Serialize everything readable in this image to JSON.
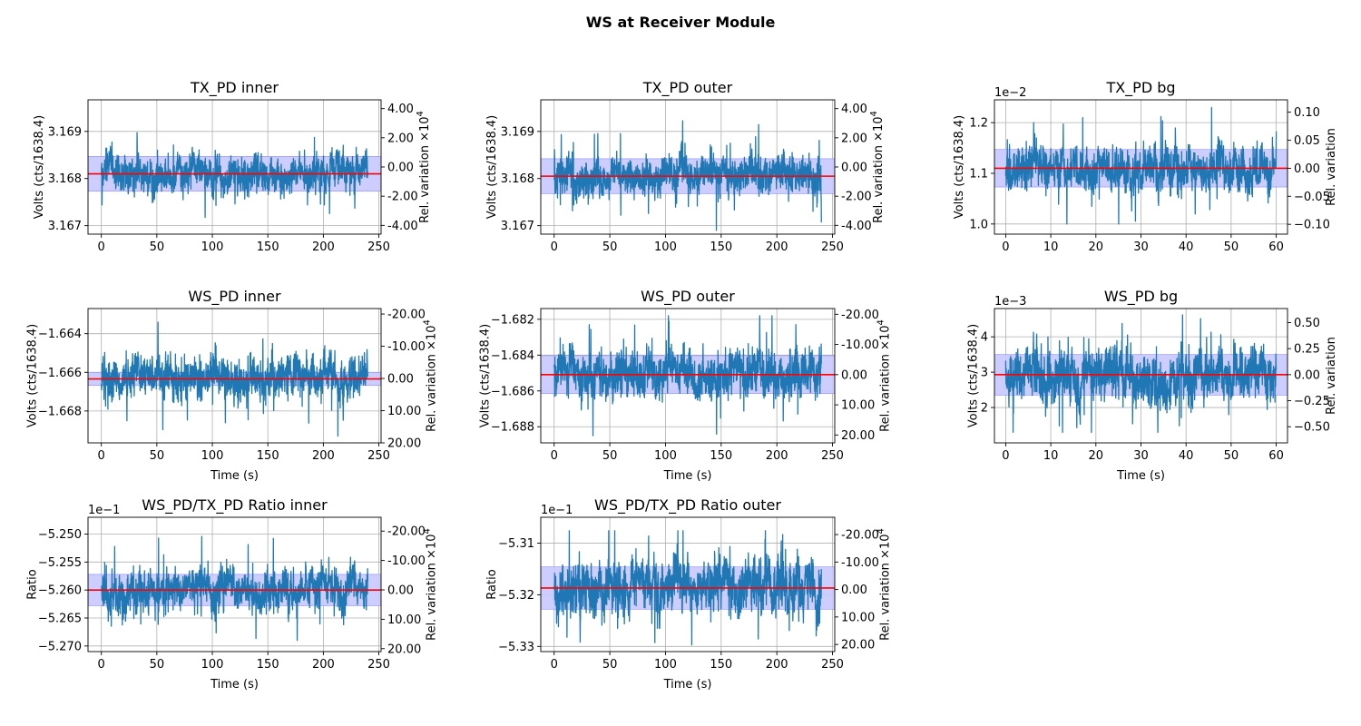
{
  "figure": {
    "title": "WS at Receiver Module"
  },
  "colors": {
    "trace": "#1f77b4",
    "mean_line": "#ff0000",
    "band": "#c8c8ff",
    "grid": "#b0b0b0"
  },
  "chart_data": [
    {
      "type": "line",
      "title": "TX_PD inner",
      "xlabel": "",
      "ylabel": "Volts (cts/1638.4)",
      "y2label": "Rel. variation ×10^4",
      "xlim": [
        -12,
        252
      ],
      "ylim": [
        3.16682,
        3.16967
      ],
      "x_ticks": [
        0,
        50,
        100,
        150,
        200,
        250
      ],
      "x_tick_labels": [
        "0",
        "50",
        "100",
        "150",
        "200",
        "250"
      ],
      "y_ticks": [
        3.167,
        3.168,
        3.169
      ],
      "y_tick_labels": [
        "3.167",
        "3.168",
        "3.169"
      ],
      "y2_ticks": [
        4,
        2,
        0,
        -2,
        -4
      ],
      "y2_tick_labels": [
        "4.00",
        "2.00",
        "0.00",
        "-2.00",
        "-4.00"
      ],
      "y2_at_ymin": -4.6,
      "y2_at_ymax": 4.6,
      "offset_text": "",
      "series": {
        "x_start": 0,
        "x_end": 240,
        "mean": 3.1681,
        "band": [
          3.16773,
          3.16847
        ],
        "min": 3.1669,
        "max": 3.16955,
        "noise": 0.0003
      },
      "grid": true
    },
    {
      "type": "line",
      "title": "TX_PD outer",
      "xlabel": "",
      "ylabel": "Volts (cts/1638.4)",
      "y2label": "Rel. variation ×10^4",
      "xlim": [
        -12,
        252
      ],
      "ylim": [
        3.16682,
        3.16967
      ],
      "x_ticks": [
        0,
        50,
        100,
        150,
        200,
        250
      ],
      "x_tick_labels": [
        "0",
        "50",
        "100",
        "150",
        "200",
        "250"
      ],
      "y_ticks": [
        3.167,
        3.168,
        3.169
      ],
      "y_tick_labels": [
        "3.167",
        "3.168",
        "3.169"
      ],
      "y2_ticks": [
        4,
        2,
        0,
        -2,
        -4
      ],
      "y2_tick_labels": [
        "4.00",
        "2.00",
        "0.00",
        "-2.00",
        "-4.00"
      ],
      "y2_at_ymin": -4.6,
      "y2_at_ymax": 4.6,
      "offset_text": "",
      "series": {
        "x_start": 0,
        "x_end": 240,
        "mean": 3.16805,
        "band": [
          3.16768,
          3.16842
        ],
        "min": 3.1669,
        "max": 3.1694,
        "noise": 0.0003
      },
      "grid": true
    },
    {
      "type": "line",
      "title": "TX_PD bg",
      "xlabel": "",
      "ylabel": "Volts (cts/1638.4)",
      "y2label": "Rel. variation",
      "xlim": [
        -2.5,
        62.5
      ],
      "ylim": [
        0.0098,
        0.01245
      ],
      "x_ticks": [
        0,
        10,
        20,
        30,
        40,
        50,
        60
      ],
      "x_tick_labels": [
        "0",
        "10",
        "20",
        "30",
        "40",
        "50",
        "60"
      ],
      "y_ticks": [
        0.01,
        0.011,
        0.012
      ],
      "y_tick_labels": [
        "1.0",
        "1.1",
        "1.2"
      ],
      "y2_ticks": [
        0.1,
        0.05,
        0.0,
        -0.05,
        -0.1
      ],
      "y2_tick_labels": [
        "0.10",
        "0.05",
        "0.00",
        "−0.05",
        "−0.10"
      ],
      "y2_at_ymin": -0.1175,
      "y2_at_ymax": 0.122,
      "offset_text": "1e−2",
      "series": {
        "x_start": 0,
        "x_end": 60,
        "mean": 0.0111,
        "band": [
          0.01073,
          0.01147
        ],
        "min": 0.01,
        "max": 0.01233,
        "noise": 0.00035
      },
      "grid": true
    },
    {
      "type": "line",
      "title": "WS_PD inner",
      "xlabel": "Time (s)",
      "ylabel": "Volts (cts/1638.4)",
      "y2label": "Rel. variation ×10^4",
      "xlim": [
        -12,
        252
      ],
      "ylim": [
        -1.66965,
        -1.6627
      ],
      "x_ticks": [
        0,
        50,
        100,
        150,
        200,
        250
      ],
      "x_tick_labels": [
        "0",
        "50",
        "100",
        "150",
        "200",
        "250"
      ],
      "y_ticks": [
        -1.664,
        -1.666,
        -1.668
      ],
      "y_tick_labels": [
        "−1.664",
        "−1.666",
        "−1.668"
      ],
      "y2_ticks": [
        -20,
        -10,
        0,
        10,
        20
      ],
      "y2_tick_labels": [
        "-20.00",
        "-10.00",
        "0.00",
        "10.00",
        "20.00"
      ],
      "y2_at_ymin": 20.0,
      "y2_at_ymax": -21.7,
      "offset_text": "",
      "series": {
        "x_start": 0,
        "x_end": 240,
        "mean": -1.66634,
        "band": [
          -1.66668,
          -1.666
        ],
        "min": -1.6693,
        "max": -1.6631,
        "noise": 0.00085
      },
      "grid": true
    },
    {
      "type": "line",
      "title": "WS_PD outer",
      "xlabel": "Time (s)",
      "ylabel": "Volts (cts/1638.4)",
      "y2label": "Rel. variation ×10^4",
      "xlim": [
        -12,
        252
      ],
      "ylim": [
        -1.6889,
        -1.6814
      ],
      "x_ticks": [
        0,
        50,
        100,
        150,
        200,
        250
      ],
      "x_tick_labels": [
        "0",
        "50",
        "100",
        "150",
        "200",
        "250"
      ],
      "y_ticks": [
        -1.682,
        -1.684,
        -1.686,
        -1.688
      ],
      "y_tick_labels": [
        "−1.682",
        "−1.684",
        "−1.686",
        "−1.688"
      ],
      "y2_ticks": [
        -20,
        -10,
        0,
        10,
        20
      ],
      "y2_tick_labels": [
        "-20.00",
        "-10.00",
        "0.00",
        "10.00",
        "20.00"
      ],
      "y2_at_ymin": 22.6,
      "y2_at_ymax": -21.9,
      "offset_text": "",
      "series": {
        "x_start": 0,
        "x_end": 240,
        "mean": -1.68509,
        "band": [
          -1.68615,
          -1.68403
        ],
        "min": -1.6885,
        "max": -1.6818,
        "noise": 0.001
      },
      "grid": true
    },
    {
      "type": "line",
      "title": "WS_PD bg",
      "xlabel": "Time (s)",
      "ylabel": "Volts (cts/1638.4)",
      "y2label": "Rel. variation",
      "xlim": [
        -2.5,
        62.5
      ],
      "ylim": [
        0.001,
        0.0048
      ],
      "x_ticks": [
        0,
        10,
        20,
        30,
        40,
        50,
        60
      ],
      "x_tick_labels": [
        "0",
        "10",
        "20",
        "30",
        "40",
        "50",
        "60"
      ],
      "y_ticks": [
        0.002,
        0.003,
        0.004
      ],
      "y_tick_labels": [
        "2",
        "3",
        "4"
      ],
      "y2_ticks": [
        0.5,
        0.25,
        0.0,
        -0.25,
        -0.5
      ],
      "y2_tick_labels": [
        "0.50",
        "0.25",
        "0.00",
        "−0.25",
        "−0.50"
      ],
      "y2_at_ymin": -0.655,
      "y2_at_ymax": 0.635,
      "offset_text": "1e−3",
      "series": {
        "x_start": 0,
        "x_end": 60,
        "mean": 0.00293,
        "band": [
          0.00235,
          0.0035
        ],
        "min": 0.0013,
        "max": 0.00462,
        "noise": 0.0006
      },
      "grid": true
    },
    {
      "type": "line",
      "title": "WS_PD/TX_PD Ratio inner",
      "xlabel": "Time (s)",
      "ylabel": "Ratio",
      "y2label": "Rel. variation ×10^4",
      "xlim": [
        -12,
        252
      ],
      "ylim": [
        -0.5271,
        -0.5247
      ],
      "x_ticks": [
        0,
        50,
        100,
        150,
        200,
        250
      ],
      "x_tick_labels": [
        "0",
        "50",
        "100",
        "150",
        "200",
        "250"
      ],
      "y_ticks": [
        -0.525,
        -0.5255,
        -0.526,
        -0.5265,
        -0.527
      ],
      "y_tick_labels": [
        "−5.250",
        "−5.255",
        "−5.260",
        "−5.265",
        "−5.270"
      ],
      "y2_ticks": [
        -20,
        -10,
        0,
        10,
        20
      ],
      "y2_tick_labels": [
        "-20.00",
        "-10.00",
        "0.00",
        "10.00",
        "20.00"
      ],
      "y2_at_ymin": 21.0,
      "y2_at_ymax": -24.7,
      "offset_text": "1e−1",
      "series": {
        "x_start": 0,
        "x_end": 240,
        "mean": -0.526,
        "band": [
          -0.52628,
          -0.52572
        ],
        "min": -0.5269,
        "max": -0.5249,
        "noise": 0.00028
      },
      "grid": true
    },
    {
      "type": "line",
      "title": "WS_PD/TX_PD Ratio outer",
      "xlabel": "Time (s)",
      "ylabel": "Ratio",
      "y2label": "Rel. variation ×10^4",
      "xlim": [
        -12,
        252
      ],
      "ylim": [
        -0.5331,
        -0.5305
      ],
      "x_ticks": [
        0,
        50,
        100,
        150,
        200,
        250
      ],
      "x_tick_labels": [
        "0",
        "50",
        "100",
        "150",
        "200",
        "250"
      ],
      "y_ticks": [
        -0.531,
        -0.532,
        -0.533
      ],
      "y_tick_labels": [
        "−5.31",
        "−5.32",
        "−5.33"
      ],
      "y2_ticks": [
        -20,
        -10,
        0,
        10,
        20
      ],
      "y2_tick_labels": [
        "-20.00",
        "-10.00",
        "0.00",
        "10.00",
        "20.00"
      ],
      "y2_at_ymin": 22.6,
      "y2_at_ymax": -26.3,
      "offset_text": "1e−1",
      "series": {
        "x_start": 0,
        "x_end": 240,
        "mean": -0.53187,
        "band": [
          -0.53228,
          -0.53146
        ],
        "min": -0.53297,
        "max": -0.53076,
        "noise": 0.0004
      },
      "grid": true
    }
  ]
}
